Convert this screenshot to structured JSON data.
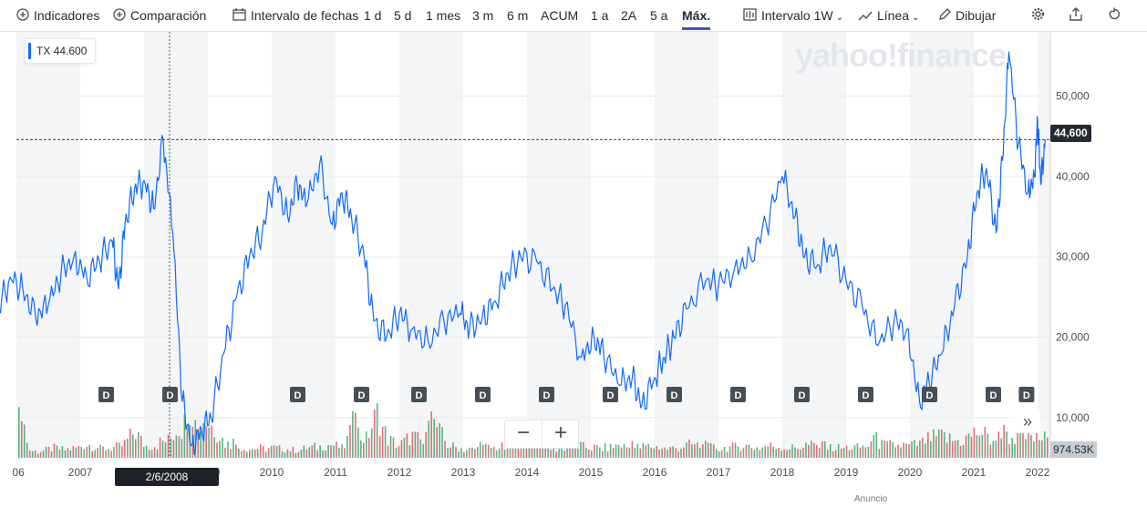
{
  "toolbar": {
    "indicators": "Indicadores",
    "comparison": "Comparación",
    "date_range": "Intervalo de fechas",
    "ranges": [
      "1 d",
      "5 d",
      "1 mes",
      "3 m",
      "6 m",
      "ACUM",
      "1 a",
      "2A",
      "5 a",
      "Máx."
    ],
    "active_range": "Máx.",
    "interval": "Intervalo",
    "interval_value": "1W",
    "chart_type": "Línea",
    "draw": "Dibujar",
    "icons": [
      "plus-circle-icon",
      "calendar-icon",
      "candle-icon",
      "line-chart-icon",
      "pencil-icon",
      "gear-icon",
      "share-icon",
      "reset-icon"
    ]
  },
  "legend": {
    "symbol": "TX",
    "value": "44.600"
  },
  "watermark": "yahoo!finance",
  "price_tag": "44,600",
  "volume_tag": "974.53K",
  "crosshair_date": "2/6/2008",
  "zoom": {
    "minus": "−",
    "plus": "+"
  },
  "scroll_icon": "»",
  "ad_label": "Anuncio",
  "colors": {
    "line": "#0f69ff",
    "vol_up": "#37a86b",
    "vol_down": "#e0525f",
    "band": "#f4f5f6",
    "active": "#3d53c6"
  },
  "chart_data": {
    "type": "line",
    "series": [
      {
        "name": "TX",
        "x": [
          2005.7,
          2005.9,
          2006.1,
          2006.3,
          2006.5,
          2006.7,
          2006.9,
          2007.1,
          2007.3,
          2007.5,
          2007.6,
          2007.7,
          2007.85,
          2008.0,
          2008.15,
          2008.3,
          2008.45,
          2008.6,
          2008.75,
          2008.9,
          2009.05,
          2009.25,
          2009.45,
          2009.65,
          2009.85,
          2010.05,
          2010.25,
          2010.4,
          2010.55,
          2010.75,
          2010.95,
          2011.1,
          2011.25,
          2011.45,
          2011.6,
          2011.8,
          2012.0,
          2012.2,
          2012.45,
          2012.7,
          2012.95,
          2013.1,
          2013.3,
          2013.5,
          2013.7,
          2013.9,
          2014.15,
          2014.4,
          2014.6,
          2014.85,
          2015.05,
          2015.2,
          2015.45,
          2015.65,
          2015.8,
          2016.0,
          2016.15,
          2016.3,
          2016.5,
          2016.8,
          2017.0,
          2017.25,
          2017.5,
          2017.75,
          2018.0,
          2018.2,
          2018.35,
          2018.55,
          2018.75,
          2019.0,
          2019.25,
          2019.5,
          2019.75,
          2019.95,
          2020.15,
          2020.3,
          2020.5,
          2020.7,
          2020.9,
          2021.05,
          2021.2,
          2021.35,
          2021.45,
          2021.55,
          2021.7,
          2021.85,
          2021.95,
          2022.0,
          2022.05,
          2022.12
        ],
        "y": [
          23000,
          27500,
          26000,
          22500,
          24000,
          28000,
          30000,
          27500,
          29500,
          32000,
          26000,
          34000,
          38500,
          39500,
          36000,
          44600,
          33000,
          12000,
          6500,
          8500,
          10000,
          18000,
          25000,
          30000,
          33000,
          40000,
          35000,
          39000,
          36500,
          41500,
          34000,
          38000,
          35000,
          30000,
          22000,
          20000,
          23000,
          21000,
          19500,
          22000,
          23000,
          21000,
          22500,
          24500,
          28000,
          30000,
          29500,
          26000,
          24000,
          17500,
          20000,
          18000,
          14000,
          15000,
          11500,
          15000,
          17500,
          20000,
          23500,
          27000,
          26500,
          28500,
          30000,
          34000,
          40000,
          35000,
          30000,
          29000,
          31500,
          27000,
          24000,
          19000,
          22000,
          21000,
          12000,
          14500,
          18000,
          24000,
          30000,
          38000,
          41000,
          33000,
          42000,
          55500,
          44000,
          38000,
          40000,
          47000,
          39000,
          44600
        ]
      }
    ],
    "volume": [
      1.6,
      0.35,
      0.3,
      0.45,
      0.4,
      0.5,
      0.6,
      0.45,
      0.5,
      0.55,
      1.2,
      0.6,
      0.7,
      0.8,
      1.5,
      0.9,
      1.8,
      1.3,
      0.7,
      0.5,
      0.4,
      0.45,
      0.5,
      0.4,
      0.35,
      0.5,
      0.55,
      0.6,
      0.45,
      1.5,
      0.8,
      2.0,
      0.9,
      0.6,
      1.0,
      0.7,
      1.7,
      0.6,
      0.45,
      0.4,
      0.5,
      0.45,
      0.5,
      0.55,
      0.6,
      0.8,
      0.5,
      0.45,
      0.5,
      0.55,
      0.5,
      0.45,
      0.6,
      0.5,
      0.55,
      0.5,
      0.45,
      0.5,
      0.6,
      0.55,
      0.5,
      0.45,
      0.5,
      0.6,
      0.5,
      0.55,
      0.5,
      0.5,
      0.6,
      0.55,
      0.5,
      0.5,
      0.45,
      0.5,
      0.8,
      0.6,
      0.55,
      0.6,
      0.7,
      0.9,
      1.0,
      0.85,
      0.9,
      1.2,
      0.95,
      1.0,
      0.9,
      1.1,
      1.0,
      0.95
    ],
    "y_ticks": [
      10000,
      20000,
      30000,
      40000,
      50000
    ],
    "ylim": [
      5000,
      58000
    ],
    "x_ticks": [
      "06",
      "2007",
      "2008",
      "2009",
      "2010",
      "2011",
      "2012",
      "2013",
      "2014",
      "2015",
      "2016",
      "2017",
      "2018",
      "2019",
      "2020",
      "2021",
      "2022"
    ],
    "dividend_marks": [
      2007.4,
      2008.4,
      2010.4,
      2011.4,
      2012.3,
      2013.3,
      2014.3,
      2015.3,
      2016.3,
      2017.3,
      2018.3,
      2019.3,
      2020.3,
      2021.3,
      2021.82
    ],
    "dividend_label": "D",
    "crosshair": {
      "x": 2008.4,
      "y": 44600
    },
    "grid": true,
    "legend": "top-left"
  }
}
